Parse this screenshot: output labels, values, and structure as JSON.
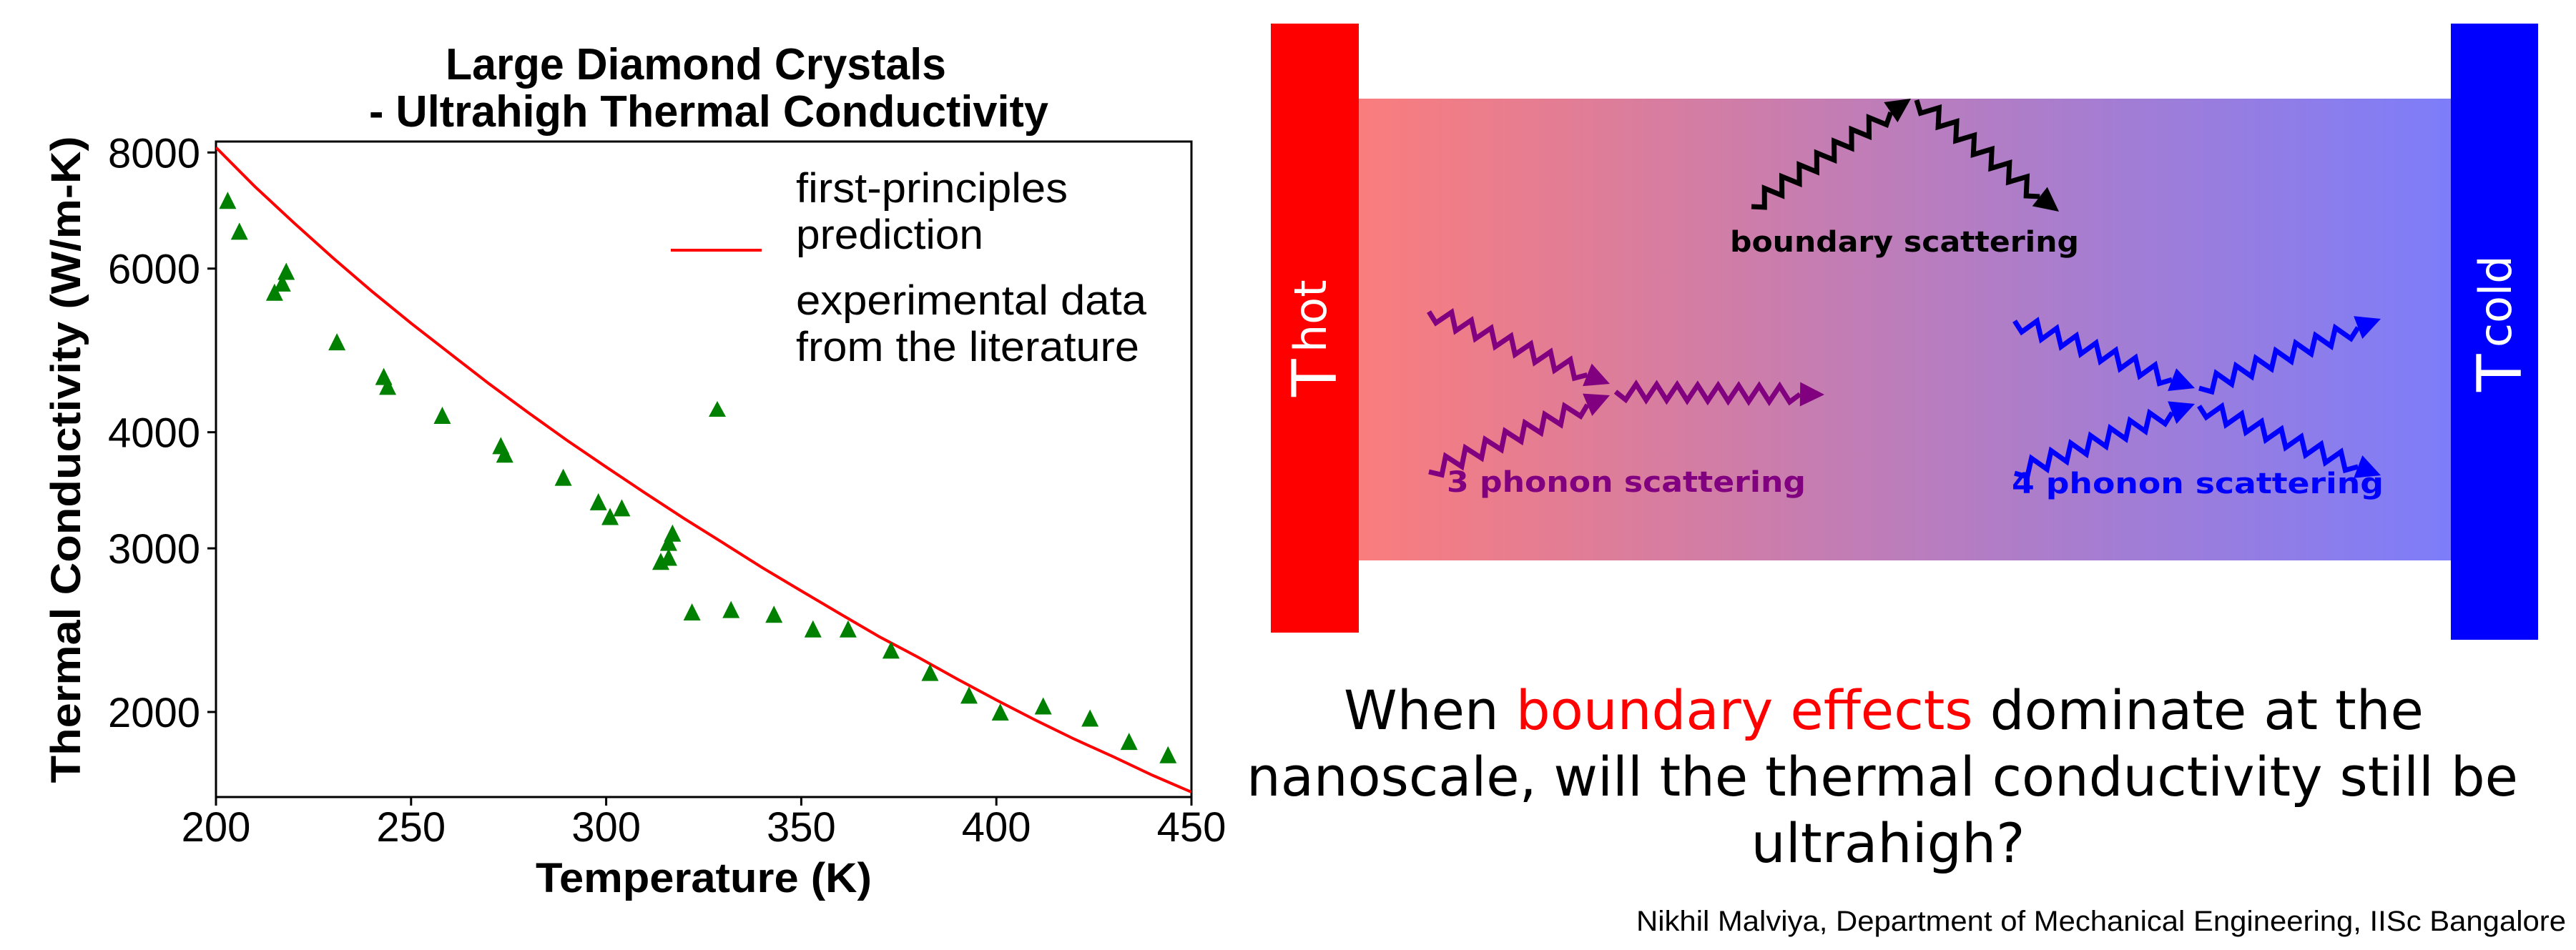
{
  "chart_data": {
    "type": "scatter",
    "title": [
      "Large Diamond Crystals",
      "- Ultrahigh Thermal Conductivity"
    ],
    "xlabel": "Temperature (K)",
    "ylabel": "Thermal Conductivity (W/m-K)",
    "xlim": [
      200,
      450
    ],
    "ylim": [
      1620,
      8220
    ],
    "yscale": "log",
    "xticks": [
      200,
      250,
      300,
      350,
      400,
      450
    ],
    "xtick_labels": [
      "200",
      "250",
      "300",
      "350",
      "400",
      "450"
    ],
    "yticks": [
      2000,
      3000,
      4000,
      6000,
      8000
    ],
    "ytick_labels": [
      "2000",
      "3000",
      "4000",
      "6000",
      "8000"
    ],
    "grid": false,
    "legend_position": "top-right",
    "series": [
      {
        "name": "first-principles prediction",
        "legend_label": [
          "first-principles",
          "prediction"
        ],
        "kind": "line",
        "color": "#ff0000",
        "x": [
          200,
          210,
          220,
          230,
          240,
          250,
          260,
          270,
          280,
          290,
          300,
          310,
          320,
          330,
          340,
          350,
          360,
          370,
          380,
          390,
          400,
          410,
          420,
          430,
          440,
          450
        ],
        "y": [
          8100,
          7350,
          6720,
          6160,
          5670,
          5240,
          4860,
          4510,
          4200,
          3920,
          3670,
          3440,
          3230,
          3040,
          2860,
          2700,
          2550,
          2410,
          2290,
          2170,
          2060,
          1960,
          1870,
          1790,
          1710,
          1640
        ]
      },
      {
        "name": "experimental data from the literature",
        "legend_label": [
          "experimental data",
          "from the literature"
        ],
        "kind": "scatter",
        "marker": "triangle",
        "color": "#008000",
        "points": [
          [
            203,
            7070
          ],
          [
            206,
            6550
          ],
          [
            215,
            5630
          ],
          [
            217,
            5760
          ],
          [
            218,
            5930
          ],
          [
            231,
            4980
          ],
          [
            243,
            4570
          ],
          [
            244,
            4460
          ],
          [
            258,
            4150
          ],
          [
            273,
            3850
          ],
          [
            274,
            3770
          ],
          [
            289,
            3560
          ],
          [
            298,
            3350
          ],
          [
            301,
            3230
          ],
          [
            304,
            3300
          ],
          [
            314,
            2890
          ],
          [
            316,
            2920
          ],
          [
            316,
            3030
          ],
          [
            317,
            3100
          ],
          [
            322,
            2550
          ],
          [
            332,
            2565
          ],
          [
            343,
            2535
          ],
          [
            353,
            2445
          ],
          [
            362,
            2445
          ],
          [
            373,
            2320
          ],
          [
            383,
            2195
          ],
          [
            393,
            2075
          ],
          [
            401,
            1990
          ],
          [
            412,
            2020
          ],
          [
            424,
            1960
          ],
          [
            434,
            1850
          ],
          [
            444,
            1790
          ]
        ]
      }
    ]
  },
  "diagram": {
    "hot_label": "T",
    "hot_sub": "hot",
    "cold_label": "T",
    "cold_sub": "cold",
    "hot_color": "#ff0000",
    "cold_color": "#0000ff",
    "gradient_left": "#fa7d7d",
    "gradient_right": "#7d7dfa",
    "boundary_label": "boundary scattering",
    "boundary_color": "#000000",
    "three_phonon_label": "3 phonon scattering",
    "three_phonon_color": "#800080",
    "four_phonon_label": "4 phonon scattering",
    "four_phonon_color": "#0000ff"
  },
  "question": {
    "line1_a": "When ",
    "line1_b": "boundary effects",
    "line1_c": " dominate at the",
    "line2": "nanoscale, will the thermal conductivity still be",
    "line3": "ultrahigh?",
    "highlight_color": "#ff0000"
  },
  "credit": "Nikhil Malviya, Department of Mechanical Engineering, IISc Bangalore"
}
